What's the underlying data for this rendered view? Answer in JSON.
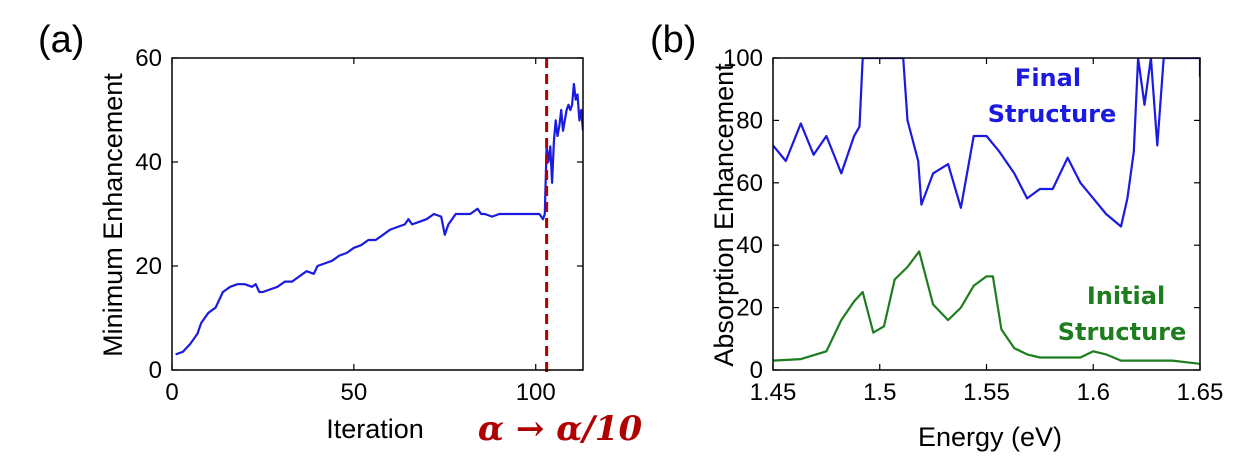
{
  "colors": {
    "blue": "#1a1ae0",
    "green": "#1e7d1e",
    "red": "#b00000",
    "axis": "#000000"
  },
  "annotation_alpha": "α → α/10",
  "chart_data": [
    {
      "type": "line",
      "panel_label": "(a)",
      "xlabel": "Iteration",
      "ylabel": "Minimum Enhancement",
      "xlim": [
        0,
        113
      ],
      "ylim": [
        0,
        60
      ],
      "xticks": [
        0,
        50,
        100
      ],
      "yticks": [
        0,
        20,
        40,
        60
      ],
      "marker_line": {
        "x": 103,
        "style": "dashed",
        "color": "#b00000"
      },
      "series": [
        {
          "name": "Minimum Enhancement",
          "color": "#1a1ae0",
          "x": [
            1,
            3,
            5,
            7,
            8,
            9,
            10,
            12,
            14,
            15,
            16,
            18,
            20,
            22,
            23,
            24,
            25,
            27,
            29,
            31,
            33,
            35,
            37,
            39,
            40,
            42,
            44,
            46,
            48,
            50,
            52,
            54,
            56,
            58,
            60,
            62,
            64,
            65,
            66,
            68,
            70,
            72,
            74,
            75,
            76,
            77,
            78,
            80,
            82,
            84,
            85,
            86,
            88,
            90,
            92,
            94,
            96,
            98,
            100,
            101,
            102,
            102.5,
            103,
            103.5,
            104,
            104.5,
            105,
            105.5,
            106,
            106.5,
            107,
            107.5,
            108,
            108.5,
            109,
            109.5,
            110,
            110.5,
            111,
            111.5,
            112,
            112.5,
            113
          ],
          "values": [
            3,
            3.5,
            5,
            7,
            9,
            10,
            11,
            12,
            15,
            15.5,
            16,
            16.5,
            16.5,
            16,
            16.5,
            15,
            15,
            15.5,
            16,
            17,
            17,
            18,
            19,
            18.5,
            20,
            20.5,
            21,
            22,
            22.5,
            23.5,
            24,
            25,
            25,
            26,
            27,
            27.5,
            28,
            29,
            28,
            28.5,
            29,
            30,
            29.5,
            26,
            28,
            29,
            30,
            30,
            30,
            31,
            30,
            30,
            29.5,
            30,
            30,
            30,
            30,
            30,
            30,
            30,
            29,
            30,
            43,
            40,
            43,
            36,
            44,
            48,
            45,
            47,
            50,
            46,
            48,
            50,
            51,
            50,
            51,
            55,
            52,
            53,
            48,
            50,
            46
          ]
        }
      ]
    },
    {
      "type": "line",
      "panel_label": "(b)",
      "xlabel": "Energy (eV)",
      "ylabel": "Absorption Enhancement",
      "xlim": [
        1.45,
        1.65
      ],
      "ylim": [
        0,
        100
      ],
      "xticks": [
        1.45,
        1.5,
        1.55,
        1.6,
        1.65
      ],
      "xtick_labels": [
        "1.45",
        "1.5",
        "1.55",
        "1.6",
        "1.65"
      ],
      "yticks": [
        0,
        20,
        40,
        60,
        80,
        100
      ],
      "series": [
        {
          "name": "Final Structure",
          "label_lines": [
            "Final",
            "Structure"
          ],
          "color": "#1a1ae0",
          "x": [
            1.45,
            1.456,
            1.463,
            1.469,
            1.475,
            1.482,
            1.488,
            1.4905,
            1.492,
            1.511,
            1.513,
            1.518,
            1.5195,
            1.525,
            1.532,
            1.538,
            1.544,
            1.55,
            1.556,
            1.563,
            1.569,
            1.575,
            1.581,
            1.588,
            1.594,
            1.6,
            1.606,
            1.613,
            1.616,
            1.619,
            1.621,
            1.624,
            1.627,
            1.63,
            1.633,
            1.636,
            1.6395,
            1.65,
            1.65
          ],
          "values": [
            72,
            67,
            79,
            69,
            75,
            63,
            75,
            78,
            100,
            100,
            80,
            67,
            53,
            63,
            66,
            52,
            75,
            75,
            70,
            63,
            55,
            58,
            58,
            68,
            60,
            55,
            50,
            46,
            55,
            70,
            100,
            85,
            100,
            72,
            100,
            100,
            100,
            100,
            94
          ]
        },
        {
          "name": "Initial Structure",
          "label_lines": [
            "Initial",
            "Structure"
          ],
          "color": "#1e7d1e",
          "x": [
            1.45,
            1.463,
            1.475,
            1.482,
            1.488,
            1.492,
            1.497,
            1.502,
            1.507,
            1.513,
            1.5185,
            1.525,
            1.532,
            1.538,
            1.544,
            1.55,
            1.553,
            1.557,
            1.563,
            1.569,
            1.575,
            1.581,
            1.588,
            1.594,
            1.6,
            1.606,
            1.613,
            1.625,
            1.637,
            1.65
          ],
          "values": [
            3,
            3.5,
            6,
            16,
            22,
            25,
            12,
            14,
            29,
            33,
            38,
            21,
            16,
            20,
            27,
            30,
            30,
            13,
            7,
            5,
            4,
            4,
            4,
            4,
            6,
            5,
            3,
            3,
            3,
            2
          ]
        }
      ]
    }
  ]
}
